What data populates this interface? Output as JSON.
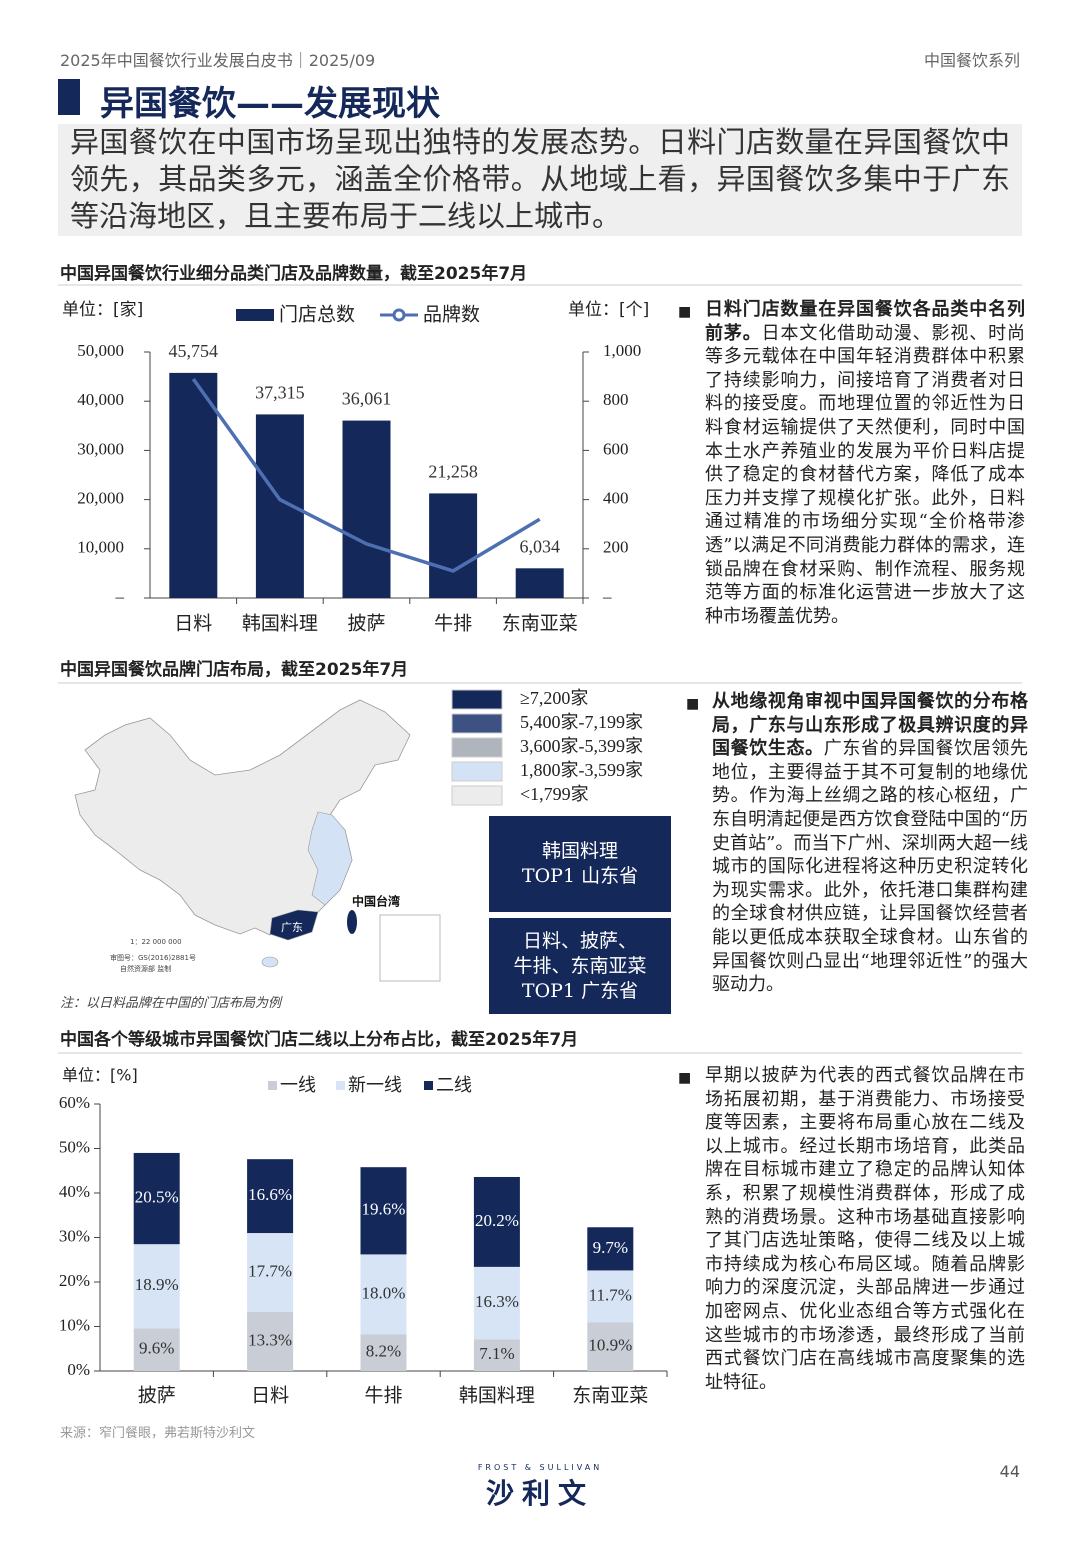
{
  "header": {
    "left": "2025年中国餐饮行业发展白皮书｜2025/09",
    "right": "中国餐饮系列"
  },
  "title": "异国餐饮——发展现状",
  "summary": "异国餐饮在中国市场呈现出独特的发展态势。日料门店数量在异国餐饮中领先，其品类多元，涵盖全价格带。从地域上看，异国餐饮多集中于广东等沿海地区，且主要布局于二线以上城市。",
  "chart_data": [
    {
      "type": "bar_line",
      "title": "中国异国餐饮行业细分品类门店及品牌数量，截至2025年7月",
      "y_unit": "单位：[家]",
      "y2_unit": "单位：[个]",
      "categories": [
        "日料",
        "韩国料理",
        "披萨",
        "牛排",
        "东南亚菜"
      ],
      "series": [
        {
          "name": "门店总数",
          "type": "bar",
          "color": "#14285a",
          "values": [
            45754,
            37315,
            36061,
            21258,
            6034
          ],
          "value_labels": [
            "45,754",
            "37,315",
            "36,061",
            "21,258",
            "6,034"
          ]
        },
        {
          "name": "品牌数",
          "type": "line",
          "axis": "y2",
          "color": "#4f6fb3",
          "values": [
            890,
            400,
            220,
            110,
            320
          ]
        }
      ],
      "ylim": [
        0,
        50000
      ],
      "yticks": [
        {
          "value": 0,
          "label": "–"
        },
        {
          "value": 10000,
          "label": "10,000"
        },
        {
          "value": 20000,
          "label": "20,000"
        },
        {
          "value": 30000,
          "label": "30,000"
        },
        {
          "value": 40000,
          "label": "40,000"
        },
        {
          "value": 50000,
          "label": "50,000"
        }
      ],
      "y2lim": [
        0,
        1000
      ],
      "y2ticks": [
        {
          "value": 0,
          "label": "–"
        },
        200,
        400,
        600,
        800,
        {
          "value": 1000,
          "label": "1,000"
        }
      ]
    },
    {
      "type": "stacked_bar",
      "title": "中国各个等级城市异国餐饮门店二线以上分布占比，截至2025年7月",
      "y_unit": "单位：[%]",
      "categories": [
        "披萨",
        "日料",
        "牛排",
        "韩国料理",
        "东南亚菜"
      ],
      "series": [
        {
          "name": "一线",
          "color": "#c9cdd6",
          "values": [
            9.6,
            13.3,
            8.2,
            7.1,
            10.9
          ],
          "value_labels": [
            "9.6%",
            "13.3%",
            "8.2%",
            "7.1%",
            "10.9%"
          ]
        },
        {
          "name": "新一线",
          "color": "#d6e4f5",
          "values": [
            18.9,
            17.7,
            18.0,
            16.3,
            11.7
          ],
          "value_labels": [
            "18.9%",
            "17.7%",
            "18.0%",
            "16.3%",
            "11.7%"
          ]
        },
        {
          "name": "二线",
          "color": "#14285a",
          "values": [
            20.5,
            16.6,
            19.6,
            20.2,
            9.7
          ],
          "value_labels": [
            "20.5%",
            "16.6%",
            "19.6%",
            "20.2%",
            "9.7%"
          ]
        }
      ],
      "ylim": [
        0,
        60
      ],
      "yticks": [
        {
          "value": 0,
          "label": "0%"
        },
        {
          "value": 10,
          "label": "10%"
        },
        {
          "value": 20,
          "label": "20%"
        },
        {
          "value": 30,
          "label": "30%"
        },
        {
          "value": 40,
          "label": "40%"
        },
        {
          "value": 50,
          "label": "50%"
        },
        {
          "value": 60,
          "label": "60%"
        }
      ]
    }
  ],
  "map": {
    "title": "中国异国餐饮品牌门店布局，截至2025年7月",
    "legend": [
      {
        "label": "≥7,200家",
        "color": "#14285a"
      },
      {
        "label": "5,400家-7,199家",
        "color": "#3d5283"
      },
      {
        "label": "3,600家-5,399家",
        "color": "#b0b5bd"
      },
      {
        "label": "1,800家-3,599家",
        "color": "#d3e3f5"
      },
      {
        "label": "<1,799家",
        "color": "#ececec"
      }
    ],
    "labels": {
      "guangdong": "广东",
      "taiwan": "中国台湾"
    },
    "scale": "1：22 000 000",
    "approval": "审图号：GS(2016)2881号",
    "issuer": "自然资源部 监制",
    "boxes": [
      [
        "韩国料理",
        "TOP1 山东省"
      ],
      [
        "日料、披萨、",
        "牛排、东南亚菜",
        "TOP1 广东省"
      ]
    ],
    "note": "注：以日料品牌在中国的门店布局为例"
  },
  "paragraphs": [
    {
      "bold": "日料门店数量在异国餐饮各品类中名列前茅。",
      "text": "日本文化借助动漫、影视、时尚等多元载体在中国年轻消费群体中积累了持续影响力，间接培育了消费者对日料的接受度。而地理位置的邻近性为日料食材运输提供了天然便利，同时中国本土水产养殖业的发展为平价日料店提供了稳定的食材替代方案，降低了成本压力并支撑了规模化扩张。此外，日料通过精准的市场细分实现“全价格带渗透”以满足不同消费能力群体的需求，连锁品牌在食材采购、制作流程、服务规范等方面的标准化运营进一步放大了这种市场覆盖优势。"
    },
    {
      "bold": "从地缘视角审视中国异国餐饮的分布格局，广东与山东形成了极具辨识度的异国餐饮生态。",
      "text": "广东省的异国餐饮居领先地位，主要得益于其不可复制的地缘优势。作为海上丝绸之路的核心枢纽，广东自明清起便是西方饮食登陆中国的“历史首站”。而当下广州、深圳两大超一线城市的国际化进程将这种历史积淀转化为现实需求。此外，依托港口集群构建的全球食材供应链，让异国餐饮经营者能以更低成本获取全球食材。山东省的异国餐饮则凸显出“地理邻近性”的强大驱动力。"
    },
    {
      "text": "早期以披萨为代表的西式餐饮品牌在市场拓展初期，基于消费能力、市场接受度等因素，主要将布局重心放在二线及以上城市。经过长期市场培育，此类品牌在目标城市建立了稳定的品牌认知体系，积累了规模性消费群体，形成了成熟的消费场景。这种市场基础直接影响了其门店选址策略，使得二线及以上城市持续成为核心布局区域。随着品牌影响力的深度沉淀，头部品牌进一步通过加密网点、优化业态组合等方式强化在这些城市的市场渗透，最终形成了当前西式餐饮门店在高线城市高度聚集的选址特征。"
    }
  ],
  "source": "来源：窄门餐眼，弗若斯特沙利文",
  "footer": {
    "logo_en": "FROST & SULLIVAN",
    "logo_cn": "沙利文",
    "page": "44"
  }
}
